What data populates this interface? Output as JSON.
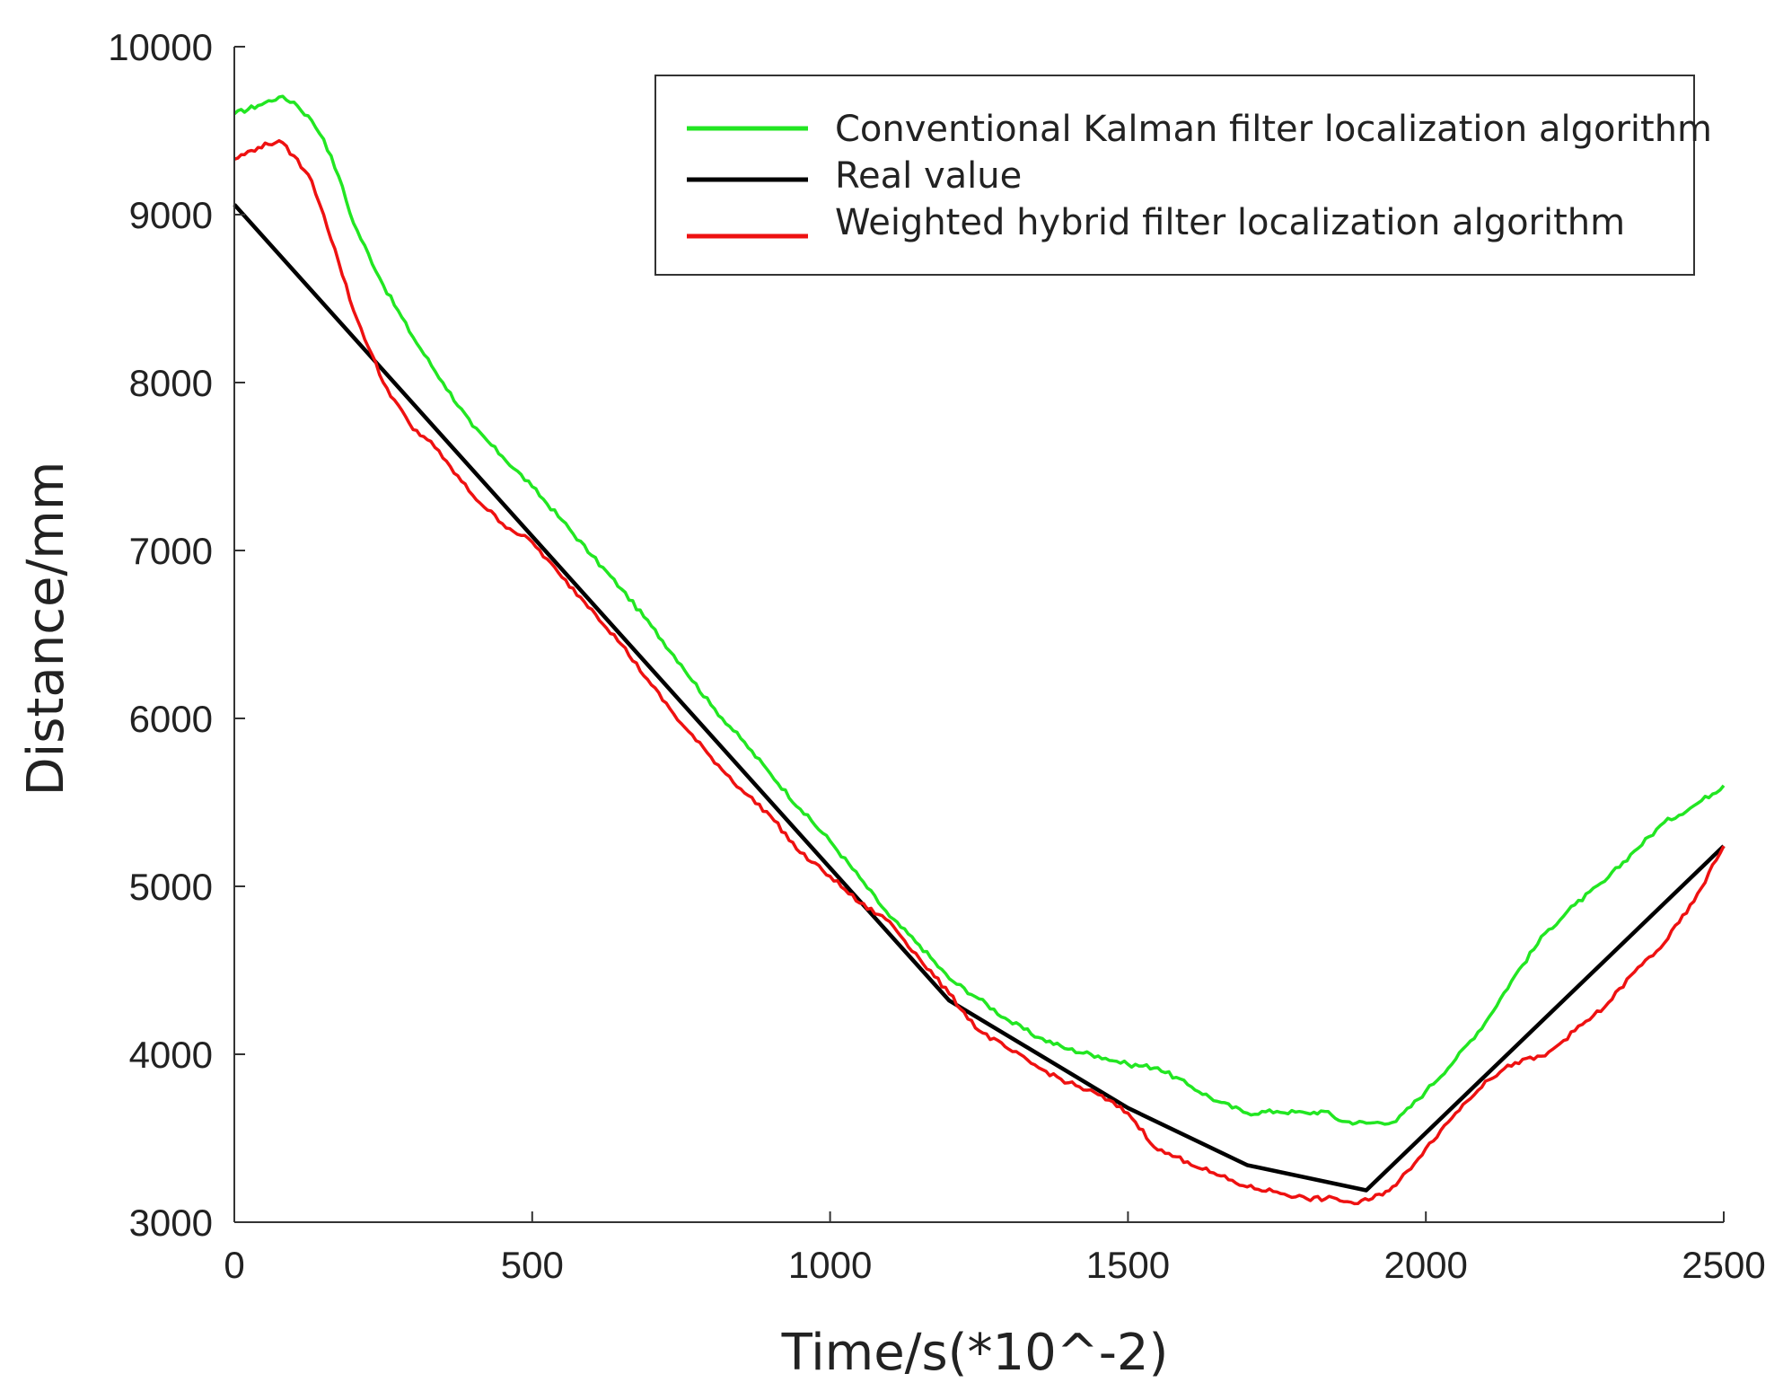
{
  "chart_data": {
    "type": "line",
    "title": "",
    "xlabel": "Time/s(*10^-2)",
    "ylabel": "Distance/mm",
    "xlim": [
      0,
      2500
    ],
    "ylim": [
      3000,
      10000
    ],
    "xticks": [
      0,
      500,
      1000,
      1500,
      2000,
      2500
    ],
    "yticks": [
      3000,
      4000,
      5000,
      6000,
      7000,
      8000,
      9000,
      10000
    ],
    "grid": false,
    "legend_position": "top-right",
    "series": [
      {
        "name": "Conventional Kalman filter localization algorithm",
        "color": "#22e622",
        "x": [
          0,
          40,
          75,
          100,
          130,
          150,
          175,
          200,
          250,
          300,
          350,
          400,
          450,
          500,
          550,
          600,
          650,
          700,
          750,
          800,
          850,
          900,
          950,
          1000,
          1050,
          1100,
          1150,
          1200,
          1250,
          1300,
          1350,
          1400,
          1450,
          1500,
          1550,
          1600,
          1650,
          1700,
          1750,
          1800,
          1830,
          1860,
          1900,
          1950,
          2000,
          2050,
          2100,
          2150,
          2200,
          2250,
          2300,
          2350,
          2400,
          2450,
          2500
        ],
        "values": [
          9600,
          9650,
          9700,
          9670,
          9560,
          9450,
          9230,
          8950,
          8580,
          8270,
          8000,
          7740,
          7560,
          7380,
          7180,
          6970,
          6770,
          6550,
          6320,
          6080,
          5880,
          5670,
          5460,
          5270,
          5050,
          4820,
          4650,
          4450,
          4330,
          4200,
          4100,
          4030,
          3990,
          3940,
          3920,
          3820,
          3720,
          3650,
          3660,
          3650,
          3660,
          3600,
          3590,
          3600,
          3780,
          3970,
          4190,
          4470,
          4720,
          4890,
          5030,
          5210,
          5380,
          5480,
          5600
        ]
      },
      {
        "name": "Real value",
        "color": "#000000",
        "x": [
          0,
          1200,
          1500,
          1700,
          1900,
          2500
        ],
        "values": [
          9060,
          4320,
          3680,
          3340,
          3190,
          5240
        ]
      },
      {
        "name": "Weighted hybrid filter localization algorithm",
        "color": "#ee1111",
        "x": [
          0,
          40,
          75,
          100,
          130,
          150,
          175,
          200,
          250,
          300,
          330,
          350,
          400,
          450,
          500,
          550,
          600,
          650,
          700,
          750,
          800,
          850,
          900,
          950,
          1000,
          1050,
          1100,
          1150,
          1200,
          1250,
          1300,
          1350,
          1400,
          1450,
          1500,
          1550,
          1600,
          1650,
          1700,
          1750,
          1800,
          1850,
          1880,
          1910,
          1950,
          2000,
          2050,
          2100,
          2150,
          2200,
          2250,
          2300,
          2350,
          2400,
          2450,
          2500
        ],
        "values": [
          9330,
          9400,
          9440,
          9350,
          9200,
          9000,
          8720,
          8430,
          8000,
          7720,
          7650,
          7550,
          7330,
          7160,
          7050,
          6840,
          6650,
          6440,
          6200,
          5970,
          5770,
          5580,
          5420,
          5200,
          5060,
          4900,
          4790,
          4570,
          4360,
          4140,
          4030,
          3920,
          3830,
          3760,
          3650,
          3430,
          3360,
          3280,
          3210,
          3180,
          3140,
          3140,
          3110,
          3140,
          3220,
          3440,
          3650,
          3840,
          3950,
          3990,
          4140,
          4280,
          4490,
          4660,
          4910,
          5240
        ]
      }
    ]
  }
}
